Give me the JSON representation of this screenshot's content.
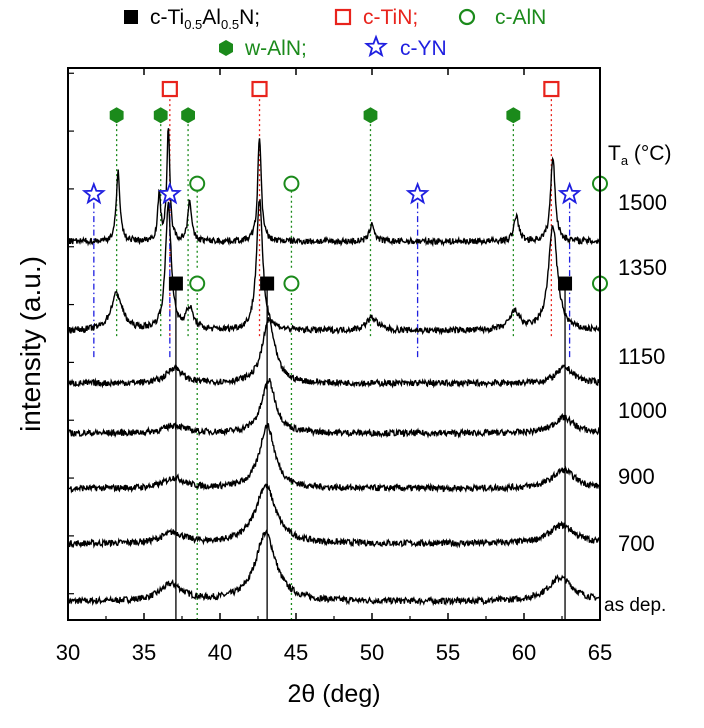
{
  "chart_data": {
    "type": "line",
    "title": "",
    "xlabel": "2θ (deg)",
    "ylabel": "intensity (a.u.)",
    "xlim": [
      30,
      65
    ],
    "xticks": [
      30,
      35,
      40,
      45,
      50,
      55,
      60,
      65
    ],
    "ylim": [
      0,
      10.5
    ],
    "temperature_header": "T",
    "temperature_header_sub": "a",
    "temperature_header_unit": " (°C)",
    "legend": {
      "row1": [
        {
          "text_pre": "c-Ti",
          "sub1": "0.5",
          "text_mid": "Al",
          "sub2": "0.5",
          "text_post": "N;",
          "color": "#000000",
          "marker": "filled-square"
        },
        {
          "text": "c-TiN;",
          "color": "#e8231c",
          "marker": "open-square"
        },
        {
          "text": "c-AlN",
          "color": "#1b8a1b",
          "marker": "open-circle"
        }
      ],
      "row2": [
        {
          "text": "w-AlN;",
          "color": "#1b8a1b",
          "marker": "filled-hexagon"
        },
        {
          "text": "c-YN",
          "color": "#1f1fe0",
          "marker": "open-star"
        }
      ]
    },
    "series": [
      {
        "name": "as dep.",
        "offset": 0.35,
        "peaks": [
          {
            "x": 36.8,
            "h": 0.32,
            "w": 0.9
          },
          {
            "x": 43.0,
            "h": 1.3,
            "w": 0.8
          },
          {
            "x": 62.4,
            "h": 0.45,
            "w": 1.0
          }
        ]
      },
      {
        "name": "700",
        "offset": 1.45,
        "peaks": [
          {
            "x": 36.9,
            "h": 0.2,
            "w": 0.9
          },
          {
            "x": 43.0,
            "h": 1.1,
            "w": 0.8
          },
          {
            "x": 62.5,
            "h": 0.35,
            "w": 1.0
          }
        ]
      },
      {
        "name": "900",
        "offset": 2.5,
        "peaks": [
          {
            "x": 37.0,
            "h": 0.2,
            "w": 0.8
          },
          {
            "x": 43.1,
            "h": 1.2,
            "w": 0.6
          },
          {
            "x": 62.6,
            "h": 0.35,
            "w": 0.9
          }
        ]
      },
      {
        "name": "1000",
        "offset": 3.55,
        "peaks": [
          {
            "x": 37.0,
            "h": 0.15,
            "w": 0.8
          },
          {
            "x": 43.2,
            "h": 1.0,
            "w": 0.55
          },
          {
            "x": 62.6,
            "h": 0.3,
            "w": 0.8
          }
        ]
      },
      {
        "name": "1150",
        "offset": 4.5,
        "peaks": [
          {
            "x": 37.0,
            "h": 0.3,
            "w": 0.6
          },
          {
            "x": 43.2,
            "h": 1.2,
            "w": 0.5
          },
          {
            "x": 62.7,
            "h": 0.3,
            "w": 0.7
          }
        ]
      },
      {
        "name": "1350",
        "offset": 5.5,
        "peaks": [
          {
            "x": 33.2,
            "h": 0.7,
            "w": 0.45
          },
          {
            "x": 36.6,
            "h": 2.4,
            "w": 0.22
          },
          {
            "x": 38.0,
            "h": 0.4,
            "w": 0.3
          },
          {
            "x": 42.6,
            "h": 2.5,
            "w": 0.24
          },
          {
            "x": 50.0,
            "h": 0.25,
            "w": 0.45
          },
          {
            "x": 59.4,
            "h": 0.35,
            "w": 0.4
          },
          {
            "x": 61.9,
            "h": 2.0,
            "w": 0.35
          }
        ]
      },
      {
        "name": "1500",
        "offset": 7.2,
        "peaks": [
          {
            "x": 33.3,
            "h": 1.35,
            "w": 0.14
          },
          {
            "x": 36.0,
            "h": 0.85,
            "w": 0.12
          },
          {
            "x": 36.6,
            "h": 2.1,
            "w": 0.12
          },
          {
            "x": 38.0,
            "h": 0.8,
            "w": 0.14
          },
          {
            "x": 42.6,
            "h": 2.0,
            "w": 0.14
          },
          {
            "x": 50.0,
            "h": 0.35,
            "w": 0.18
          },
          {
            "x": 59.5,
            "h": 0.5,
            "w": 0.18
          },
          {
            "x": 61.9,
            "h": 1.6,
            "w": 0.18
          }
        ]
      }
    ],
    "reference_lines": [
      {
        "phase": "c-Ti0.5Al0.5N",
        "color": "#000000",
        "style": "solid",
        "positions": [
          37.1,
          43.1,
          62.7
        ],
        "y_from": 0,
        "y_to": 6.4
      },
      {
        "phase": "c-TiN",
        "color": "#e8231c",
        "style": "dotted",
        "positions": [
          36.7,
          42.6,
          61.8
        ],
        "y_from": 5.4,
        "y_to": 10.1
      },
      {
        "phase": "c-AlN (1500)",
        "color": "#1b8a1b",
        "style": "dotted",
        "positions": [
          38.5,
          44.7,
          65.0
        ],
        "y_from": 6.7,
        "y_to": 8.3
      },
      {
        "phase": "c-AlN (1150)",
        "color": "#1b8a1b",
        "style": "dotted",
        "positions": [
          38.5,
          44.7,
          65.0
        ],
        "y_from": 0,
        "y_to": 6.4
      },
      {
        "phase": "w-AlN",
        "color": "#1b8a1b",
        "style": "dotted",
        "positions": [
          33.2,
          36.1,
          37.9,
          49.9,
          59.3
        ],
        "y_from": 5.4,
        "y_to": 9.6
      },
      {
        "phase": "c-YN",
        "color": "#1f1fe0",
        "style": "dashdot",
        "positions": [
          31.7,
          36.7,
          53.0,
          63.0
        ],
        "y_from": 5.0,
        "y_to": 8.1
      }
    ],
    "markers": [
      {
        "phase": "c-TiN",
        "shape": "open-square",
        "color": "#e8231c",
        "x": [
          36.7,
          42.6,
          61.8
        ],
        "y": 10.1
      },
      {
        "phase": "w-AlN",
        "shape": "filled-hexagon",
        "color": "#1b8a1b",
        "x": [
          33.2,
          36.1,
          37.9,
          49.9,
          59.3
        ],
        "y": 9.6
      },
      {
        "phase": "c-YN",
        "shape": "open-star",
        "color": "#1f1fe0",
        "x": [
          31.7,
          36.7,
          53.0,
          63.0
        ],
        "y": 8.1
      },
      {
        "phase": "c-AlN",
        "shape": "open-circle",
        "color": "#1b8a1b",
        "x": [
          38.5,
          44.7,
          65.0
        ],
        "y": 8.3
      },
      {
        "phase": "c-Ti0.5Al0.5N",
        "shape": "filled-square",
        "color": "#000000",
        "x": [
          37.1,
          43.1,
          62.7
        ],
        "y": 6.4
      },
      {
        "phase": "c-AlN",
        "shape": "open-circle",
        "color": "#1b8a1b",
        "x": [
          38.5,
          44.7,
          65.0
        ],
        "y": 6.4
      }
    ]
  }
}
